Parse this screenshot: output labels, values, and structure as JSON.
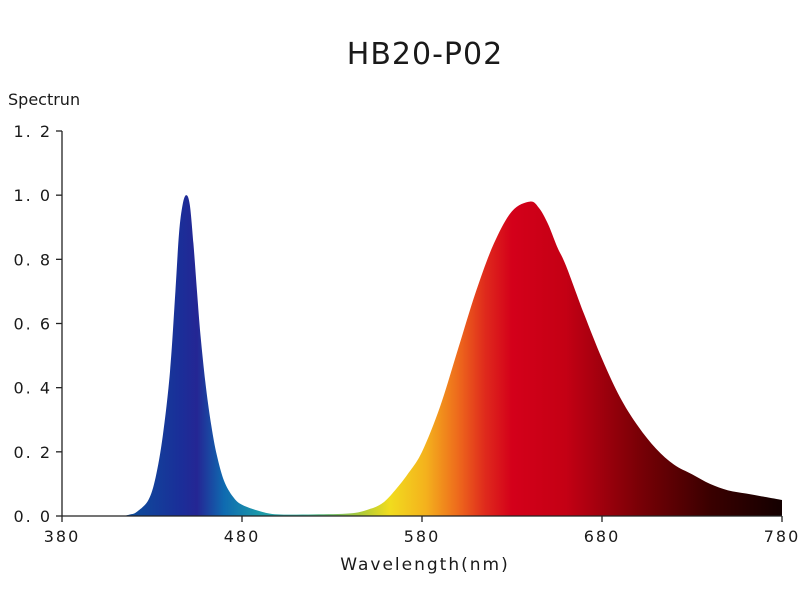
{
  "chart_data": {
    "type": "area",
    "title": "HB20-P02",
    "ylabel": "Spectrun",
    "xlabel": "Wavelength(nm)",
    "xlim": [
      380,
      780
    ],
    "ylim": [
      0,
      1.2
    ],
    "x_ticks": [
      "380",
      "480",
      "580",
      "680",
      "780"
    ],
    "y_ticks": [
      "0. 0",
      "0. 2",
      "0. 4",
      "0. 6",
      "0. 8",
      "1. 0",
      "1. 2"
    ],
    "x_tick_values": [
      380,
      480,
      580,
      680,
      780
    ],
    "y_tick_values": [
      0,
      0.2,
      0.4,
      0.6,
      0.8,
      1.0,
      1.2
    ],
    "grid": false,
    "legend": "none",
    "series": [
      {
        "x": [
          380,
          410,
          418,
          422,
          428,
          432,
          436,
          440,
          443,
          445,
          447,
          449,
          451,
          453,
          455,
          457,
          460,
          463,
          466,
          470,
          475,
          480,
          490,
          500,
          520,
          540,
          550,
          558,
          565,
          572,
          580,
          590,
          600,
          610,
          620,
          630,
          640,
          645,
          650,
          655,
          660,
          670,
          680,
          690,
          700,
          710,
          720,
          730,
          740,
          750,
          760,
          770,
          780
        ],
        "values": [
          0,
          0,
          0.005,
          0.015,
          0.05,
          0.12,
          0.25,
          0.45,
          0.7,
          0.88,
          0.97,
          1.0,
          0.97,
          0.85,
          0.7,
          0.56,
          0.4,
          0.28,
          0.19,
          0.11,
          0.06,
          0.035,
          0.015,
          0.005,
          0.005,
          0.008,
          0.02,
          0.04,
          0.08,
          0.13,
          0.2,
          0.34,
          0.52,
          0.7,
          0.85,
          0.95,
          0.98,
          0.96,
          0.91,
          0.84,
          0.78,
          0.63,
          0.49,
          0.37,
          0.28,
          0.21,
          0.16,
          0.13,
          0.1,
          0.08,
          0.07,
          0.06,
          0.05
        ]
      }
    ],
    "gradient_colors": [
      {
        "nm": 420,
        "color": "#0e4a9a"
      },
      {
        "nm": 445,
        "color": "#1a2f99"
      },
      {
        "nm": 455,
        "color": "#242694"
      },
      {
        "nm": 470,
        "color": "#0f6ab0"
      },
      {
        "nm": 490,
        "color": "#1c9aaa"
      },
      {
        "nm": 515,
        "color": "#3bb39b"
      },
      {
        "nm": 545,
        "color": "#a9c93a"
      },
      {
        "nm": 562,
        "color": "#f1dc1e"
      },
      {
        "nm": 582,
        "color": "#f4b21d"
      },
      {
        "nm": 600,
        "color": "#ee6a1c"
      },
      {
        "nm": 615,
        "color": "#df2a1c"
      },
      {
        "nm": 630,
        "color": "#d4001a"
      },
      {
        "nm": 660,
        "color": "#c40014"
      },
      {
        "nm": 700,
        "color": "#7a0006"
      },
      {
        "nm": 740,
        "color": "#3a0000"
      },
      {
        "nm": 780,
        "color": "#140000"
      }
    ]
  }
}
